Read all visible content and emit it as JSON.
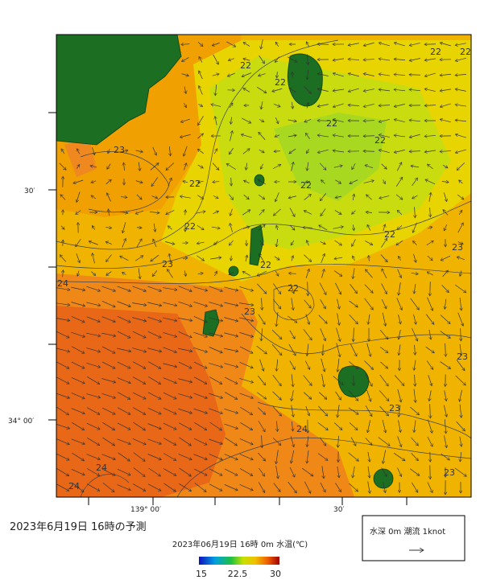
{
  "axes": {
    "lat_labels": [
      "30′",
      "34° 00′"
    ],
    "lon_labels": [
      "139° 00′",
      "30′"
    ]
  },
  "contour_labels": [
    22,
    22,
    22,
    22,
    22,
    22,
    22,
    22,
    22,
    22,
    22,
    22,
    23,
    23,
    23,
    23,
    23,
    23,
    23,
    24,
    24,
    24,
    24
  ],
  "title": "2023年6月19日 16時の予測",
  "subtitle": "2023年06月19日 16時 0m 水温(℃)",
  "colorbar": {
    "labels": [
      15,
      22.5,
      30
    ]
  },
  "legend": {
    "label": "水深 0m 潮流 1knot"
  }
}
